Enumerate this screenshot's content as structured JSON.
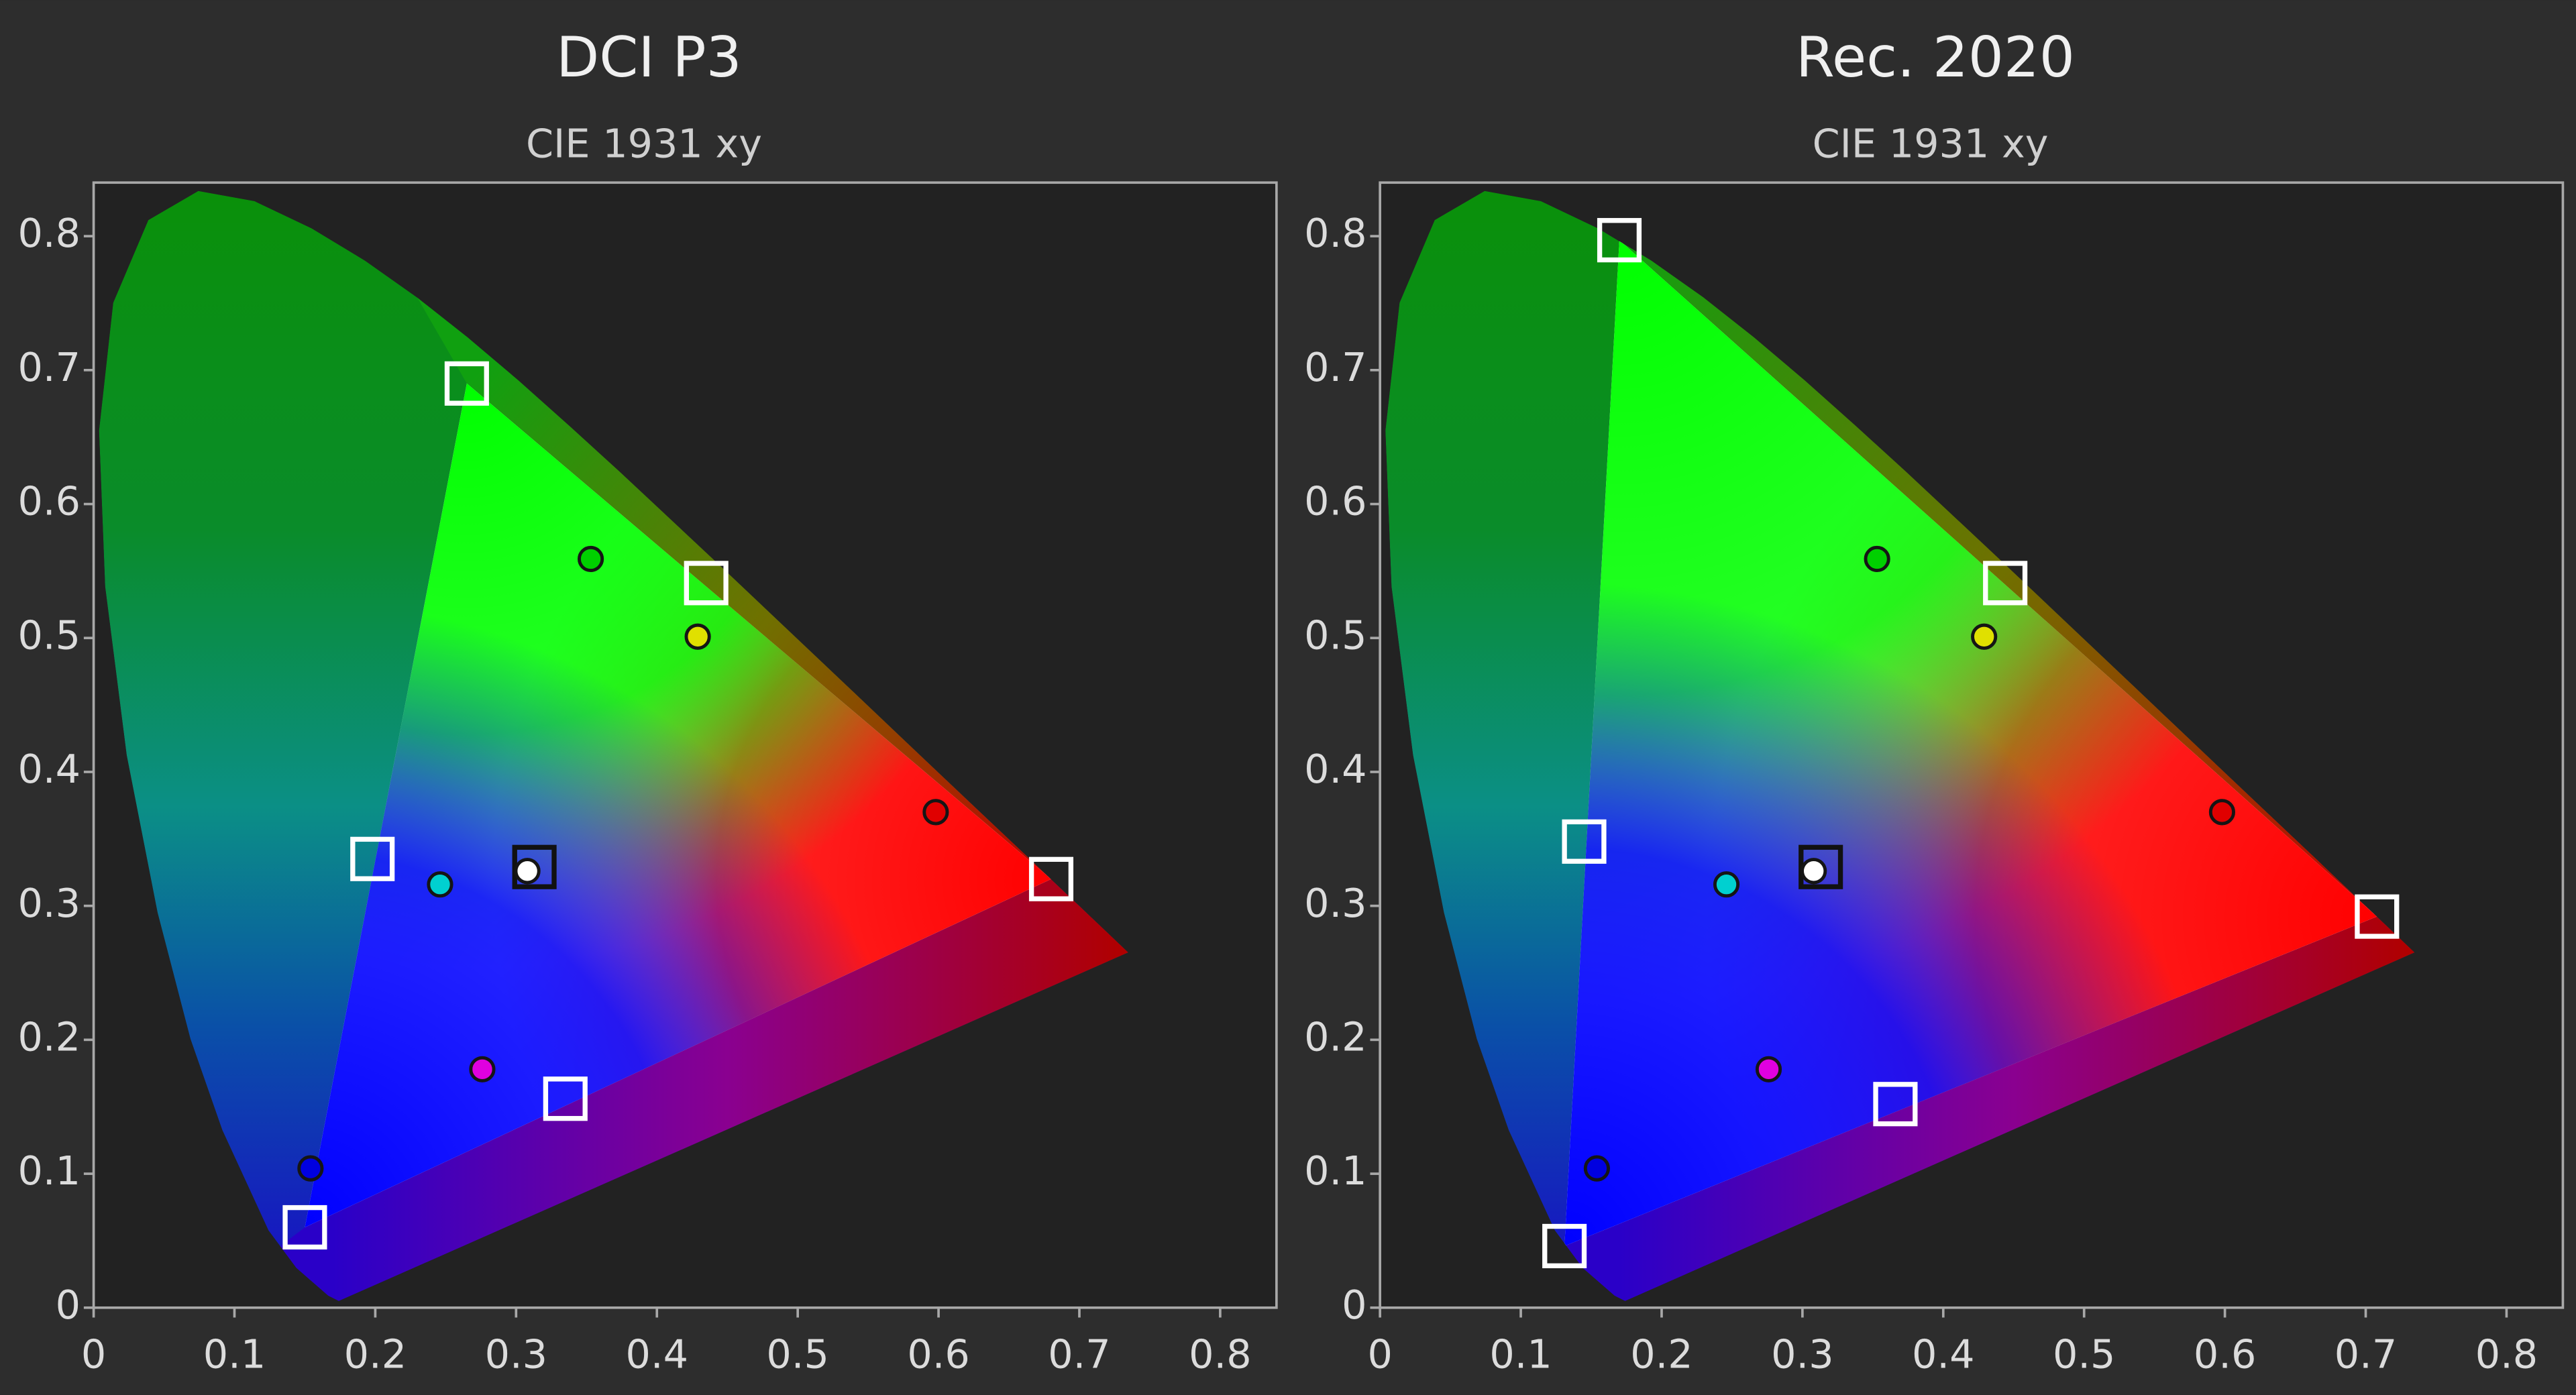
{
  "chart_data": [
    {
      "type": "scatter",
      "title": "DCI P3",
      "subtitle": "CIE 1931 xy",
      "xlim": [
        0,
        0.84
      ],
      "ylim": [
        0,
        0.84
      ],
      "xticks": [
        0,
        0.1,
        0.2,
        0.3,
        0.4,
        0.5,
        0.6,
        0.7,
        0.8
      ],
      "yticks": [
        0,
        0.1,
        0.2,
        0.3,
        0.4,
        0.5,
        0.6,
        0.7,
        0.8
      ],
      "series": [
        {
          "marker": "square",
          "colors": [
            "#ffffff",
            "#ffffff",
            "#ffffff",
            "#111111",
            "#ffffff",
            "#ffffff",
            "#ffffff"
          ],
          "x": [
            0.68,
            0.265,
            0.15,
            0.313,
            0.198,
            0.335,
            0.435
          ],
          "values": [
            0.32,
            0.69,
            0.06,
            0.329,
            0.335,
            0.156,
            0.541
          ]
        },
        {
          "marker": "circle",
          "colors": [
            "#e00000",
            "#00d000",
            "#0000e0",
            "#ffffff",
            "#00d0d0",
            "#e000e0",
            "#e0e000"
          ],
          "x": [
            0.598,
            0.353,
            0.154,
            0.308,
            0.246,
            0.276,
            0.429
          ],
          "values": [
            0.37,
            0.559,
            0.104,
            0.326,
            0.316,
            0.178,
            0.501
          ]
        }
      ]
    },
    {
      "type": "scatter",
      "title": "Rec. 2020",
      "subtitle": "CIE 1931 xy",
      "xlim": [
        0,
        0.84
      ],
      "ylim": [
        0,
        0.84
      ],
      "xticks": [
        0,
        0.1,
        0.2,
        0.3,
        0.4,
        0.5,
        0.6,
        0.7,
        0.8
      ],
      "yticks": [
        0,
        0.1,
        0.2,
        0.3,
        0.4,
        0.5,
        0.6,
        0.7,
        0.8
      ],
      "series": [
        {
          "marker": "square",
          "colors": [
            "#ffffff",
            "#ffffff",
            "#ffffff",
            "#111111",
            "#ffffff",
            "#ffffff",
            "#ffffff"
          ],
          "x": [
            0.708,
            0.17,
            0.131,
            0.313,
            0.145,
            0.366,
            0.444
          ],
          "values": [
            0.292,
            0.797,
            0.046,
            0.329,
            0.348,
            0.152,
            0.541
          ]
        },
        {
          "marker": "circle",
          "colors": [
            "#e00000",
            "#00d000",
            "#0000e0",
            "#ffffff",
            "#00d0d0",
            "#e000e0",
            "#e0e000"
          ],
          "x": [
            0.598,
            0.353,
            0.154,
            0.308,
            0.246,
            0.276,
            0.429
          ],
          "values": [
            0.37,
            0.559,
            0.104,
            0.326,
            0.316,
            0.178,
            0.501
          ]
        }
      ]
    }
  ]
}
